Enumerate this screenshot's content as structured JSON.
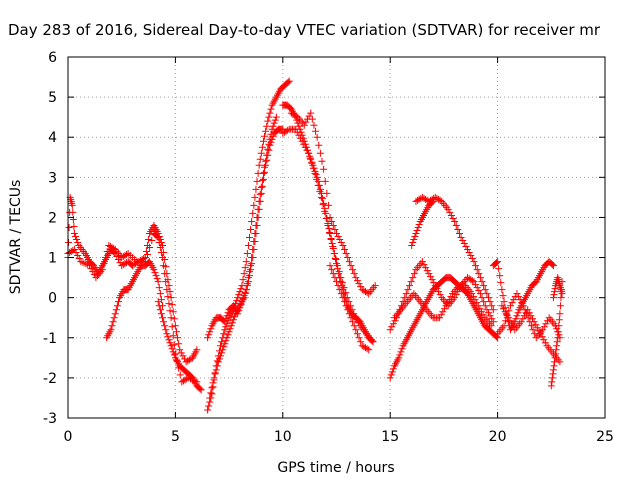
{
  "chart_data": {
    "type": "scatter",
    "title": "Day 283 of 2016, Sidereal Day-to-day VTEC variation (SDTVAR) for receiver mr",
    "xlabel": "GPS time / hours",
    "ylabel": "SDTVAR / TECUs",
    "xlim": [
      0,
      25
    ],
    "ylim": [
      -3,
      6
    ],
    "x_ticks": [
      "0",
      "5",
      "10",
      "15",
      "20",
      "25"
    ],
    "y_ticks": [
      "-3",
      "-2",
      "-1",
      "0",
      "1",
      "2",
      "3",
      "4",
      "5",
      "6"
    ],
    "grid": true,
    "marker": "plus",
    "colors": {
      "series": "#ff0000",
      "grid": "#a0a0a0",
      "axis": "#000000"
    },
    "series": [
      {
        "x": [
          0.0,
          0.1,
          0.2,
          0.3,
          0.5,
          0.8,
          1.0,
          1.2,
          1.4,
          1.6,
          1.8,
          2.0,
          2.2,
          2.5,
          2.8,
          3.0,
          3.3,
          3.6,
          3.8,
          4.0,
          4.2,
          4.4,
          4.6,
          4.8,
          5.0,
          5.2,
          5.5,
          5.8,
          6.0
        ],
        "y": [
          1.0,
          2.5,
          2.3,
          1.6,
          1.3,
          1.1,
          0.9,
          0.8,
          0.6,
          0.8,
          1.0,
          1.2,
          1.1,
          0.8,
          0.9,
          0.8,
          0.9,
          1.0,
          1.6,
          1.8,
          1.6,
          1.3,
          0.6,
          0.0,
          -0.7,
          -1.3,
          -1.6,
          -1.5,
          -1.3
        ]
      },
      {
        "x": [
          0.0,
          0.3,
          0.6,
          1.0,
          1.3,
          1.6,
          1.9,
          2.2,
          2.5,
          2.8,
          3.2,
          3.6,
          4.0,
          4.2,
          4.4,
          4.6,
          4.8,
          5.0,
          5.3,
          5.6,
          6.0
        ],
        "y": [
          1.1,
          1.2,
          0.9,
          0.8,
          0.5,
          0.7,
          1.3,
          1.2,
          1.0,
          1.1,
          0.9,
          0.9,
          1.6,
          1.5,
          1.0,
          0.2,
          -0.5,
          -1.4,
          -2.1,
          -2.0,
          -2.1
        ]
      },
      {
        "x": [
          1.8,
          2.0,
          2.2,
          2.4,
          2.6,
          2.8,
          3.0,
          3.2,
          3.4,
          3.6,
          3.8,
          4.0,
          4.2,
          4.4
        ],
        "y": [
          -1.0,
          -0.8,
          -0.4,
          0.0,
          0.2,
          0.2,
          0.4,
          0.6,
          0.8,
          0.8,
          0.9,
          0.7,
          0.4,
          -0.2
        ]
      },
      {
        "x": [
          4.2,
          4.4,
          4.6,
          4.8,
          5.0,
          5.2,
          5.4,
          5.6,
          5.8,
          6.0,
          6.2
        ],
        "y": [
          -0.1,
          -0.5,
          -0.9,
          -1.2,
          -1.5,
          -1.7,
          -1.8,
          -1.9,
          -2.0,
          -2.2,
          -2.3
        ]
      },
      {
        "x": [
          6.5,
          6.7,
          6.9,
          7.1,
          7.3,
          7.5,
          7.7,
          7.9,
          8.1,
          8.3,
          8.5,
          8.7,
          8.9,
          9.1,
          9.3,
          9.5,
          9.7,
          9.9,
          10.1,
          10.3
        ],
        "y": [
          -2.8,
          -2.4,
          -1.7,
          -1.2,
          -0.8,
          -0.5,
          -0.3,
          0.0,
          0.3,
          0.9,
          1.7,
          2.5,
          3.3,
          3.9,
          4.4,
          4.8,
          5.0,
          5.2,
          5.3,
          5.4
        ]
      },
      {
        "x": [
          6.6,
          6.8,
          7.0,
          7.2,
          7.4,
          7.6,
          7.8,
          8.0,
          8.2,
          8.4,
          8.6,
          8.8,
          9.0,
          9.2,
          9.4,
          9.6,
          9.8,
          10.0
        ],
        "y": [
          -2.5,
          -2.0,
          -1.6,
          -1.3,
          -1.0,
          -0.7,
          -0.4,
          -0.2,
          0.0,
          0.4,
          1.0,
          1.8,
          2.6,
          3.3,
          3.8,
          4.1,
          4.2,
          4.2
        ]
      },
      {
        "x": [
          6.5,
          6.7,
          6.9,
          7.1,
          7.3,
          7.5,
          7.7,
          7.9,
          8.1,
          8.3,
          8.5,
          8.7,
          8.9,
          9.1,
          9.3,
          9.5,
          9.7
        ],
        "y": [
          -1.0,
          -0.7,
          -0.5,
          -0.5,
          -0.6,
          -0.3,
          -0.2,
          -0.4,
          -0.1,
          0.2,
          0.8,
          1.6,
          2.4,
          3.1,
          3.7,
          4.2,
          4.5
        ]
      },
      {
        "x": [
          10.0,
          10.2,
          10.4,
          10.6,
          10.8,
          11.0,
          11.2,
          11.4,
          11.6,
          11.8,
          12.0,
          12.2,
          12.4,
          12.6,
          12.8,
          13.0,
          13.2,
          13.4,
          13.6,
          13.8,
          14.0,
          14.2
        ],
        "y": [
          4.8,
          4.8,
          4.7,
          4.5,
          4.2,
          3.9,
          3.6,
          3.3,
          3.0,
          2.6,
          2.1,
          1.6,
          1.1,
          0.6,
          0.2,
          -0.2,
          -0.4,
          -0.5,
          -0.6,
          -0.8,
          -1.0,
          -1.1
        ]
      },
      {
        "x": [
          10.0,
          10.3,
          10.6,
          10.9,
          11.2,
          11.5,
          11.8,
          12.1,
          12.4,
          12.7,
          13.0,
          13.3,
          13.6,
          13.9,
          14.2
        ],
        "y": [
          4.1,
          4.2,
          4.2,
          3.9,
          3.6,
          3.1,
          2.5,
          1.8,
          1.1,
          0.5,
          0.0,
          -0.4,
          -0.7,
          -0.9,
          -1.1
        ]
      },
      {
        "x": [
          10.4,
          10.7,
          11.0,
          11.3,
          11.6,
          11.9,
          12.2,
          12.5,
          12.8,
          13.1,
          13.4,
          13.7,
          14.0,
          14.3
        ],
        "y": [
          4.6,
          4.5,
          4.3,
          4.6,
          4.0,
          3.2,
          2.0,
          1.6,
          1.3,
          0.9,
          0.5,
          0.2,
          0.1,
          0.3
        ]
      },
      {
        "x": [
          12.2,
          12.5,
          12.8,
          13.1,
          13.4,
          13.7,
          14.0
        ],
        "y": [
          0.8,
          0.4,
          0.0,
          -0.4,
          -0.8,
          -1.2,
          -1.3
        ]
      },
      {
        "x": [
          15.0,
          15.2,
          15.4,
          15.6,
          15.8,
          16.0,
          16.2,
          16.4,
          16.6,
          16.8,
          17.0,
          17.2,
          17.4,
          17.6,
          17.8,
          18.0,
          18.2,
          18.4,
          18.6,
          18.8,
          19.0,
          19.2,
          19.4,
          19.6,
          19.8,
          20.0
        ],
        "y": [
          -2.0,
          -1.7,
          -1.5,
          -1.2,
          -1.0,
          -0.8,
          -0.6,
          -0.4,
          -0.2,
          0.0,
          0.2,
          0.3,
          0.4,
          0.5,
          0.5,
          0.4,
          0.3,
          0.2,
          0.1,
          -0.1,
          -0.3,
          -0.5,
          -0.7,
          -0.8,
          -0.9,
          -1.0
        ]
      },
      {
        "x": [
          15.0,
          15.3,
          15.6,
          15.9,
          16.2,
          16.5,
          16.8,
          17.1,
          17.4,
          17.7,
          18.0,
          18.3,
          18.6,
          18.9,
          19.2,
          19.5,
          19.8
        ],
        "y": [
          -0.8,
          -0.5,
          -0.1,
          0.3,
          0.7,
          0.9,
          0.6,
          0.3,
          0.0,
          -0.2,
          0.0,
          0.3,
          0.5,
          0.4,
          0.1,
          -0.3,
          -0.6
        ]
      },
      {
        "x": [
          15.2,
          15.5,
          15.8,
          16.1,
          16.4,
          16.7,
          17.0,
          17.3,
          17.6,
          17.9,
          18.2,
          18.5,
          18.8,
          19.1,
          19.4,
          19.7
        ],
        "y": [
          -0.5,
          -0.3,
          -0.1,
          0.1,
          -0.1,
          -0.3,
          -0.5,
          -0.5,
          -0.2,
          0.1,
          0.3,
          0.3,
          0.1,
          -0.2,
          -0.5,
          -0.7
        ]
      },
      {
        "x": [
          16.2,
          16.5,
          16.8,
          17.1,
          17.4,
          17.7,
          18.0,
          18.3,
          18.6,
          18.9,
          19.2,
          19.5,
          19.8
        ],
        "y": [
          2.4,
          2.5,
          2.4,
          2.5,
          2.4,
          2.2,
          1.9,
          1.5,
          1.2,
          0.9,
          0.5,
          0.1,
          -0.3
        ]
      },
      {
        "x": [
          16.0,
          16.2,
          16.4,
          16.6,
          16.8,
          17.0
        ],
        "y": [
          1.3,
          1.6,
          1.9,
          2.1,
          2.3,
          2.4
        ]
      },
      {
        "x": [
          19.8,
          20.0,
          20.2,
          20.4,
          20.6,
          20.8,
          21.0,
          21.2,
          21.4,
          21.6,
          21.8,
          22.0,
          22.2,
          22.4,
          22.6
        ],
        "y": [
          0.8,
          0.9,
          0.2,
          -0.4,
          -0.8,
          -0.6,
          -0.3,
          -0.1,
          0.1,
          0.3,
          0.4,
          0.6,
          0.8,
          0.9,
          0.8
        ]
      },
      {
        "x": [
          20.2,
          20.5,
          20.8,
          21.1,
          21.4,
          21.7,
          22.0,
          22.3,
          22.6,
          22.9
        ],
        "y": [
          -0.2,
          -0.5,
          -0.8,
          -0.6,
          -0.3,
          -0.6,
          -0.9,
          -1.2,
          -1.4,
          -1.6
        ]
      },
      {
        "x": [
          20.0,
          20.3,
          20.6,
          20.9,
          21.2,
          21.5,
          21.8,
          22.1,
          22.4,
          22.7,
          22.9
        ],
        "y": [
          -0.9,
          -0.7,
          -0.2,
          0.1,
          -0.2,
          -0.6,
          -1.0,
          -0.8,
          -0.5,
          -0.7,
          -1.0
        ]
      },
      {
        "x": [
          22.5,
          22.6,
          22.7,
          22.8,
          22.9,
          23.0
        ],
        "y": [
          -2.2,
          -1.8,
          -1.4,
          -1.0,
          -0.4,
          0.4
        ]
      },
      {
        "x": [
          22.6,
          22.7,
          22.8,
          22.9,
          23.0
        ],
        "y": [
          0.0,
          0.3,
          0.5,
          0.3,
          0.1
        ]
      }
    ]
  }
}
